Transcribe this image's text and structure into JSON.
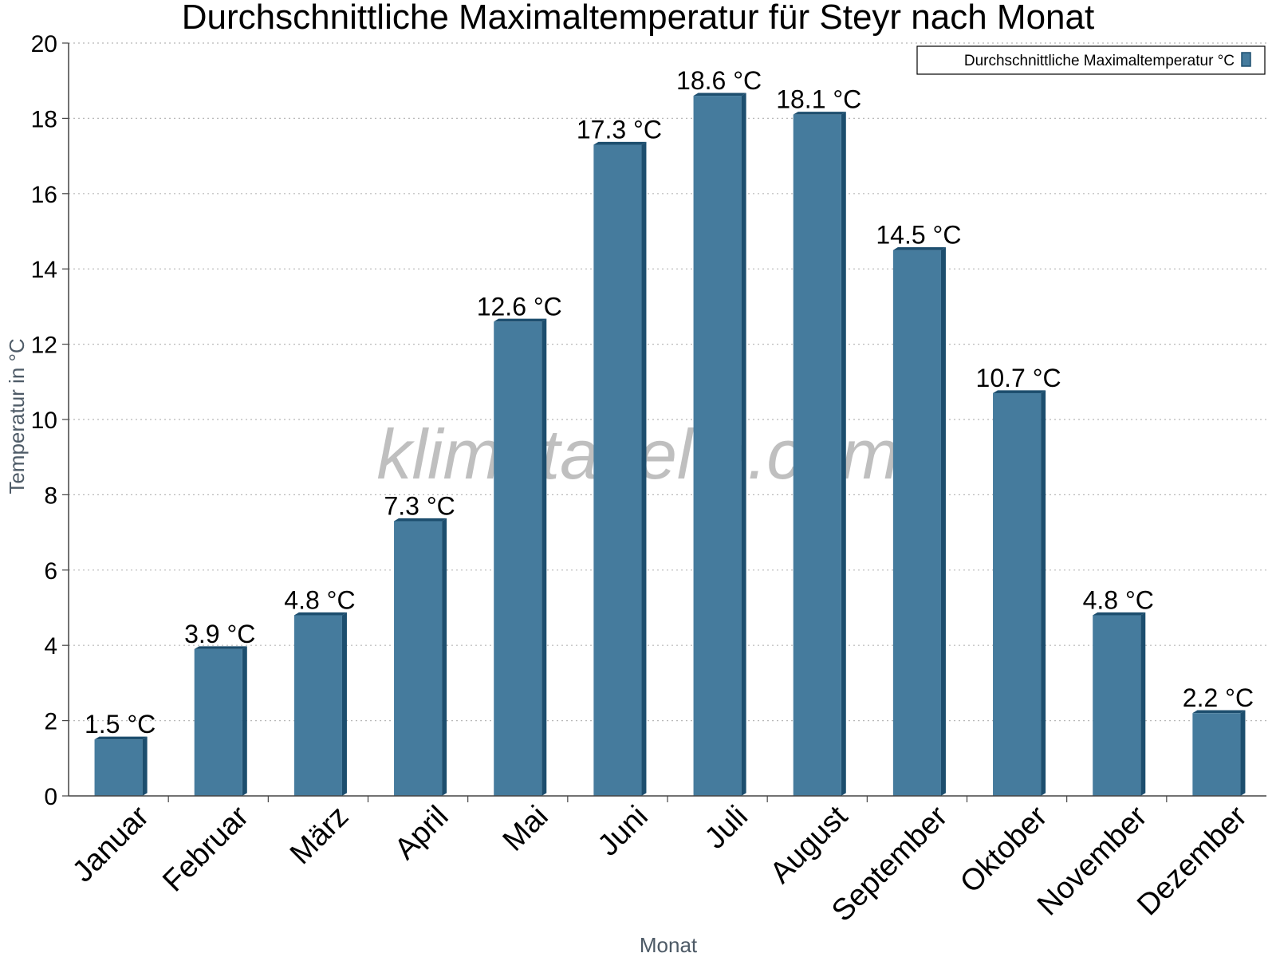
{
  "chart_data": {
    "type": "bar",
    "title": "Durchschnittliche Maximaltemperatur für Steyr nach Monat",
    "xlabel": "Monat",
    "ylabel": "Temperatur in °C",
    "ylim": [
      0,
      20
    ],
    "yticks": [
      0,
      2,
      4,
      6,
      8,
      10,
      12,
      14,
      16,
      18,
      20
    ],
    "grid": true,
    "legend_position": "top-right",
    "categories": [
      "Januar",
      "Februar",
      "März",
      "April",
      "Mai",
      "Juni",
      "Juli",
      "August",
      "September",
      "Oktober",
      "November",
      "Dezember"
    ],
    "series": [
      {
        "name": "Durchschnittliche Maximaltemperatur °C",
        "values": [
          1.5,
          3.9,
          4.8,
          7.3,
          12.6,
          17.3,
          18.6,
          18.1,
          14.5,
          10.7,
          4.8,
          2.2
        ],
        "labels": [
          "1.5 °C",
          "3.9 °C",
          "4.8 °C",
          "7.3 °C",
          "12.6 °C",
          "17.3 °C",
          "18.6 °C",
          "18.1 °C",
          "14.5 °C",
          "10.7 °C",
          "4.8 °C",
          "2.2 °C"
        ],
        "color": "#457b9d",
        "edge_color": "#1d4e6e"
      }
    ],
    "watermark": "klimatabelle.com"
  }
}
